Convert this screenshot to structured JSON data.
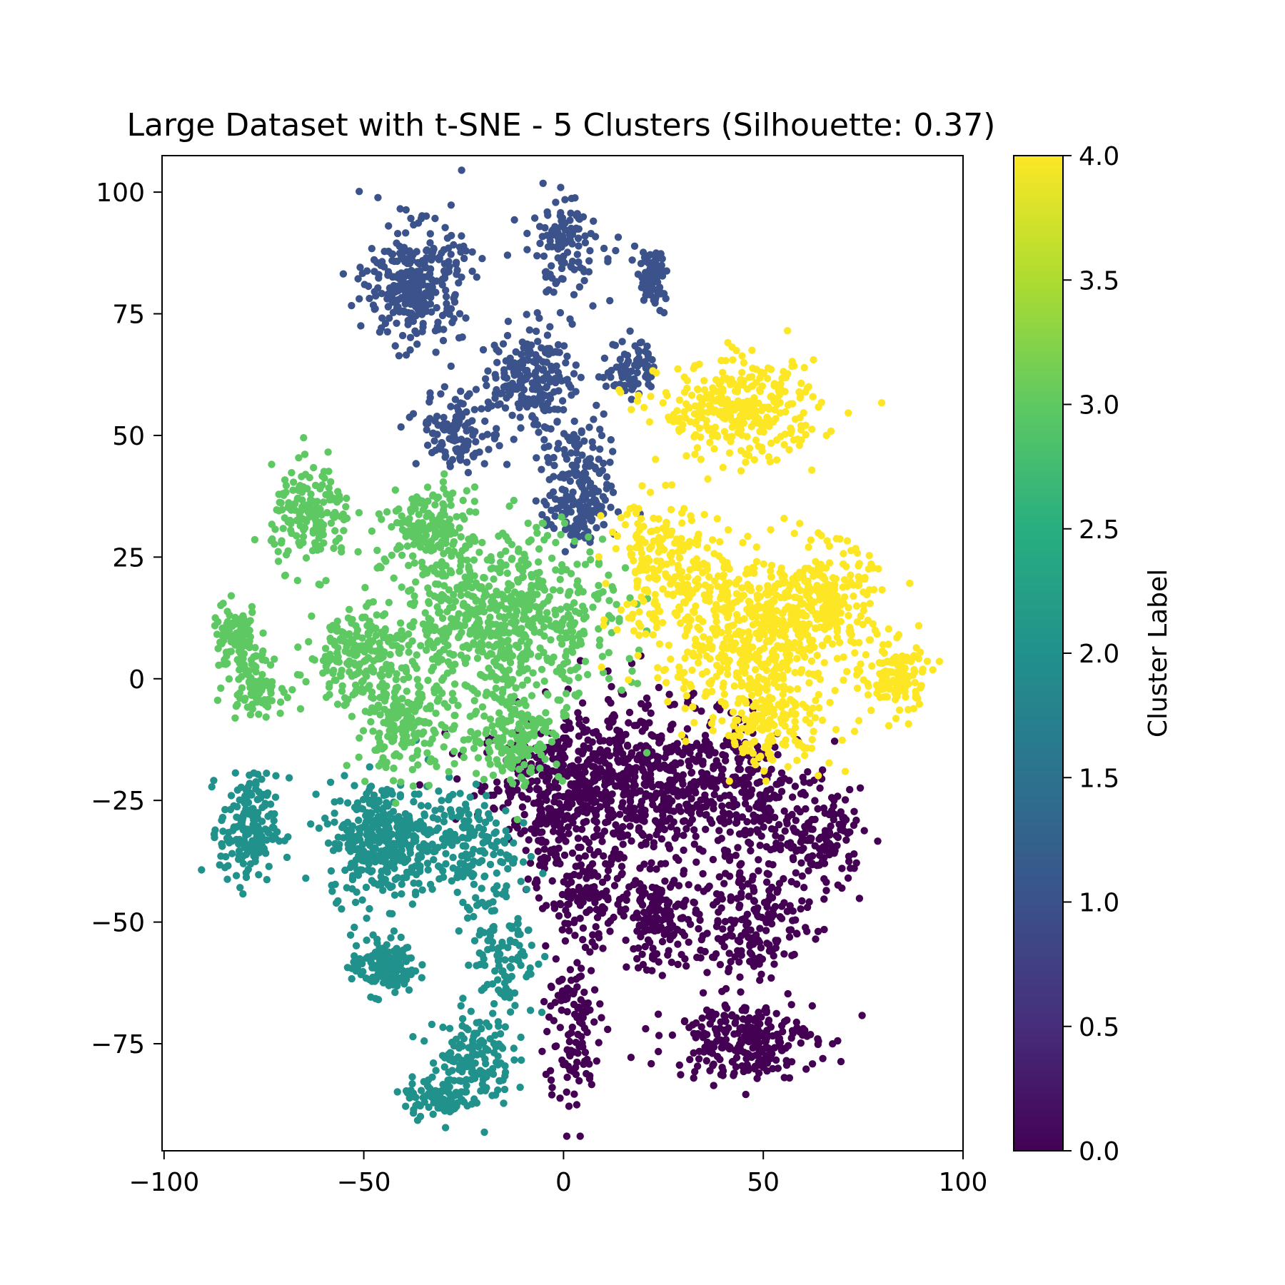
{
  "chart_data": {
    "type": "scatter",
    "title": "Large Dataset with t-SNE - 5 Clusters (Silhouette: 0.37)",
    "xlabel": "",
    "ylabel": "",
    "xlim": [
      -100.5,
      100
    ],
    "ylim": [
      -97,
      107.5
    ],
    "x_ticks": [
      -100,
      -50,
      0,
      50,
      100
    ],
    "x_tick_labels": [
      "−100",
      "−50",
      "0",
      "50",
      "100"
    ],
    "y_ticks": [
      -75,
      -50,
      -25,
      0,
      25,
      50,
      75,
      100
    ],
    "y_tick_labels": [
      "−75",
      "−50",
      "−25",
      "0",
      "25",
      "50",
      "75",
      "100"
    ],
    "grid": false,
    "colormap": "viridis",
    "colorbar": {
      "label": "Cluster Label",
      "range": [
        0.0,
        4.0
      ],
      "ticks": [
        0.0,
        0.5,
        1.0,
        1.5,
        2.0,
        2.5,
        3.0,
        3.5,
        4.0
      ],
      "tick_labels": [
        "0.0",
        "0.5",
        "1.0",
        "1.5",
        "2.0",
        "2.5",
        "3.0",
        "3.5",
        "4.0"
      ]
    },
    "clusters": [
      {
        "label": 0,
        "color": "#440154",
        "blobs": [
          {
            "cx": 3,
            "cy": -21,
            "sx": 12,
            "sy": 6,
            "n": 420
          },
          {
            "cx": 25,
            "cy": -22,
            "sx": 14,
            "sy": 9,
            "n": 480
          },
          {
            "cx": 48,
            "cy": -25,
            "sx": 8,
            "sy": 7,
            "n": 160
          },
          {
            "cx": 65,
            "cy": -33,
            "sx": 5,
            "sy": 5,
            "n": 140
          },
          {
            "cx": 6,
            "cy": -45,
            "sx": 5,
            "sy": 5,
            "n": 130
          },
          {
            "cx": -4,
            "cy": -33,
            "sx": 2.5,
            "sy": 6,
            "n": 60
          },
          {
            "cx": 24,
            "cy": -50,
            "sx": 5,
            "sy": 5,
            "n": 150
          },
          {
            "cx": 48,
            "cy": -50,
            "sx": 7,
            "sy": 6,
            "n": 190
          },
          {
            "cx": 45,
            "cy": -74,
            "sx": 9,
            "sy": 4,
            "n": 260
          },
          {
            "cx": 2,
            "cy": -72,
            "sx": 3.5,
            "sy": 9,
            "n": 120
          }
        ]
      },
      {
        "label": 1,
        "color": "#3b528b",
        "blobs": [
          {
            "cx": -37,
            "cy": 81,
            "sx": 6,
            "sy": 6,
            "n": 320
          },
          {
            "cx": 0,
            "cy": 89,
            "sx": 5,
            "sy": 5,
            "n": 120
          },
          {
            "cx": 22,
            "cy": 82,
            "sx": 2,
            "sy": 3,
            "n": 70
          },
          {
            "cx": -8,
            "cy": 62,
            "sx": 5,
            "sy": 5,
            "n": 200
          },
          {
            "cx": 17,
            "cy": 64,
            "sx": 3,
            "sy": 3,
            "n": 80
          },
          {
            "cx": -26,
            "cy": 51,
            "sx": 5,
            "sy": 4,
            "n": 120
          },
          {
            "cx": 4,
            "cy": 42,
            "sx": 5,
            "sy": 6,
            "n": 120
          },
          {
            "cx": 4,
            "cy": 34,
            "sx": 4,
            "sy": 4,
            "n": 90
          }
        ]
      },
      {
        "label": 2,
        "color": "#21918c",
        "blobs": [
          {
            "cx": -79,
            "cy": -31,
            "sx": 3.5,
            "sy": 5.5,
            "n": 190
          },
          {
            "cx": -45,
            "cy": -33,
            "sx": 7,
            "sy": 6,
            "n": 360
          },
          {
            "cx": -25,
            "cy": -34,
            "sx": 6,
            "sy": 6,
            "n": 160
          },
          {
            "cx": -45,
            "cy": -59,
            "sx": 4,
            "sy": 3,
            "n": 150
          },
          {
            "cx": -15,
            "cy": -55,
            "sx": 4,
            "sy": 8,
            "n": 120
          },
          {
            "cx": -23,
            "cy": -78,
            "sx": 5,
            "sy": 5,
            "n": 150
          },
          {
            "cx": -32,
            "cy": -86,
            "sx": 4,
            "sy": 2,
            "n": 80
          }
        ]
      },
      {
        "label": 3,
        "color": "#5ec962",
        "blobs": [
          {
            "cx": -63,
            "cy": 33,
            "sx": 5,
            "sy": 5,
            "n": 170
          },
          {
            "cx": -82,
            "cy": 8,
            "sx": 3,
            "sy": 3.5,
            "n": 100
          },
          {
            "cx": -77,
            "cy": -1,
            "sx": 3.5,
            "sy": 3,
            "n": 90
          },
          {
            "cx": -34,
            "cy": 31,
            "sx": 5,
            "sy": 4,
            "n": 160
          },
          {
            "cx": -15,
            "cy": 12,
            "sx": 14,
            "sy": 9,
            "n": 700
          },
          {
            "cx": -52,
            "cy": 5,
            "sx": 6,
            "sy": 5,
            "n": 200
          },
          {
            "cx": -40,
            "cy": -9,
            "sx": 6,
            "sy": 5,
            "n": 200
          },
          {
            "cx": -12,
            "cy": -12,
            "sx": 6,
            "sy": 5,
            "n": 170
          }
        ]
      },
      {
        "label": 4,
        "color": "#fde725",
        "blobs": [
          {
            "cx": 44,
            "cy": 55,
            "sx": 10,
            "sy": 5,
            "n": 330
          },
          {
            "cx": 25,
            "cy": 23,
            "sx": 7,
            "sy": 7,
            "n": 200
          },
          {
            "cx": 47,
            "cy": 10,
            "sx": 12,
            "sy": 8,
            "n": 550
          },
          {
            "cx": 67,
            "cy": 17,
            "sx": 5,
            "sy": 5,
            "n": 180
          },
          {
            "cx": 83,
            "cy": 0,
            "sx": 4,
            "sy": 4,
            "n": 130
          },
          {
            "cx": 52,
            "cy": -10,
            "sx": 8,
            "sy": 4,
            "n": 150
          }
        ]
      }
    ]
  }
}
